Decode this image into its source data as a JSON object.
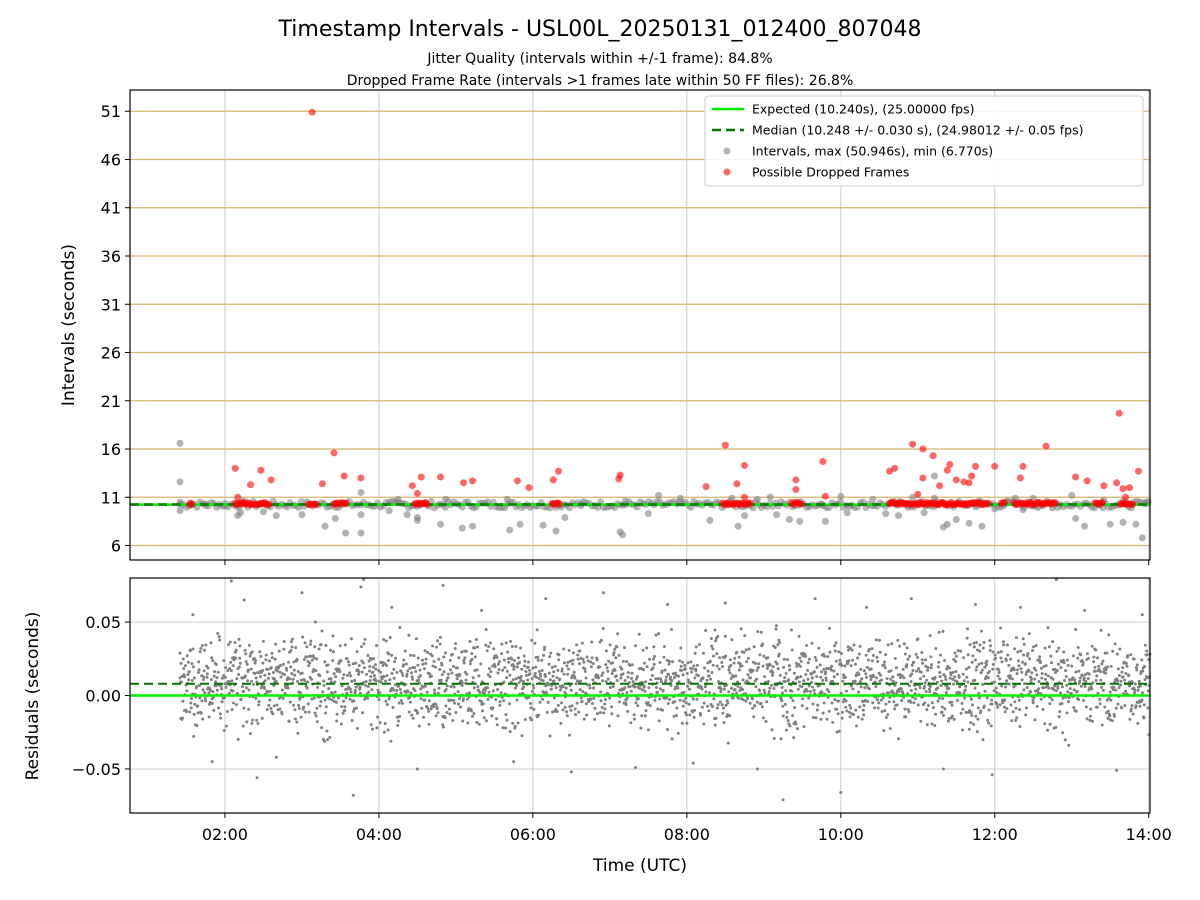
{
  "figure": {
    "title": "Timestamp Intervals - USL00L_20250131_012400_807048",
    "subtitle_1": "Jitter Quality (intervals within +/-1 frame): 84.8%",
    "subtitle_2": "Dropped Frame Rate (intervals >1 frames late within 50 FF files): 26.8%"
  },
  "colors": {
    "expected": "#00ee00",
    "median": "#007700",
    "intervals": "#808080",
    "dropped": "#ff0000",
    "hgrid_top": "#d8b46e",
    "grid": "#cccccc"
  },
  "chart_data": [
    {
      "type": "scatter",
      "xlabel": "",
      "ylabel": "Intervals (seconds)",
      "xlim": [
        "00:46",
        "14:01"
      ],
      "ylim": [
        4.5,
        53.2
      ],
      "x_ticks": [
        "02:00",
        "04:00",
        "06:00",
        "08:00",
        "10:00",
        "12:00",
        "14:00"
      ],
      "y_ticks": [
        6,
        11,
        16,
        21,
        26,
        31,
        36,
        41,
        46,
        51
      ],
      "grid": true,
      "legend_position": "top-right",
      "legend": [
        "Expected (10.240s), (25.00000 fps)",
        "Median (10.248 +/- 0.030 s), (24.98012 +/- 0.05 fps)",
        "Intervals, max (50.946s), min (6.770s)",
        "Possible Dropped Frames"
      ],
      "series": [
        {
          "name": "Expected (10.240s), (25.00000 fps)",
          "kind": "hline",
          "y": 10.24
        },
        {
          "name": "Median (10.248 +/- 0.030 s), (24.98012 +/- 0.05 fps)",
          "kind": "hline",
          "y": 10.248
        },
        {
          "name": "Intervals, max (50.946s), min (6.770s)",
          "kind": "scatter",
          "color_key": "intervals",
          "points": [
            [
              "01:25",
              16.6
            ],
            [
              "01:25",
              12.6
            ],
            [
              "01:25",
              9.6
            ],
            [
              "01:25",
              10.5
            ],
            [
              "01:45",
              10.3
            ],
            [
              "02:00",
              10.1
            ],
            [
              "02:10",
              9.1
            ],
            [
              "02:12",
              9.4
            ],
            [
              "02:30",
              9.5
            ],
            [
              "02:40",
              9.1
            ],
            [
              "03:00",
              9.2
            ],
            [
              "03:18",
              8.0
            ],
            [
              "03:26",
              8.8
            ],
            [
              "03:34",
              7.3
            ],
            [
              "03:46",
              7.3
            ],
            [
              "03:46",
              9.2
            ],
            [
              "03:46",
              11.5
            ],
            [
              "04:08",
              9.6
            ],
            [
              "04:15",
              10.8
            ],
            [
              "04:22",
              9.2
            ],
            [
              "04:30",
              8.6
            ],
            [
              "04:30",
              8.9
            ],
            [
              "04:48",
              8.2
            ],
            [
              "04:52",
              10.8
            ],
            [
              "05:05",
              7.8
            ],
            [
              "05:13",
              8.0
            ],
            [
              "05:40",
              10.8
            ],
            [
              "05:42",
              7.6
            ],
            [
              "05:50",
              8.2
            ],
            [
              "06:08",
              8.1
            ],
            [
              "06:18",
              7.5
            ],
            [
              "06:25",
              8.9
            ],
            [
              "06:38",
              10.3
            ],
            [
              "07:08",
              7.4
            ],
            [
              "07:10",
              7.1
            ],
            [
              "07:12",
              10.6
            ],
            [
              "07:30",
              9.3
            ],
            [
              "07:38",
              11.2
            ],
            [
              "07:55",
              10.9
            ],
            [
              "08:18",
              8.6
            ],
            [
              "08:35",
              10.9
            ],
            [
              "08:40",
              8.0
            ],
            [
              "08:45",
              9.1
            ],
            [
              "08:55",
              10.8
            ],
            [
              "09:05",
              11.0
            ],
            [
              "09:10",
              9.2
            ],
            [
              "09:20",
              8.7
            ],
            [
              "09:28",
              8.5
            ],
            [
              "09:45",
              10.3
            ],
            [
              "09:48",
              8.5
            ],
            [
              "10:00",
              11.1
            ],
            [
              "10:05",
              9.4
            ],
            [
              "10:25",
              10.8
            ],
            [
              "10:35",
              9.3
            ],
            [
              "10:45",
              9.1
            ],
            [
              "10:56",
              11.0
            ],
            [
              "11:05",
              9.4
            ],
            [
              "11:13",
              13.2
            ],
            [
              "11:13",
              10.9
            ],
            [
              "11:20",
              7.9
            ],
            [
              "11:23",
              8.2
            ],
            [
              "11:30",
              8.7
            ],
            [
              "11:40",
              8.3
            ],
            [
              "11:48",
              10.6
            ],
            [
              "11:50",
              8.0
            ],
            [
              "12:00",
              9.8
            ],
            [
              "12:10",
              10.6
            ],
            [
              "12:16",
              10.9
            ],
            [
              "12:22",
              9.7
            ],
            [
              "12:30",
              10.9
            ],
            [
              "12:45",
              9.9
            ],
            [
              "13:00",
              11.2
            ],
            [
              "13:03",
              8.8
            ],
            [
              "13:10",
              8.0
            ],
            [
              "13:25",
              10.7
            ],
            [
              "13:30",
              8.2
            ],
            [
              "13:40",
              8.4
            ],
            [
              "13:50",
              8.2
            ],
            [
              "13:55",
              6.8
            ],
            [
              "13:58",
              10.5
            ]
          ]
        },
        {
          "name": "Possible Dropped Frames",
          "kind": "scatter",
          "color_key": "dropped",
          "points": [
            [
              "01:33",
              10.4
            ],
            [
              "02:08",
              14.0
            ],
            [
              "02:10",
              11.0
            ],
            [
              "02:20",
              12.3
            ],
            [
              "02:28",
              13.8
            ],
            [
              "02:36",
              12.8
            ],
            [
              "03:08",
              50.9
            ],
            [
              "03:16",
              12.4
            ],
            [
              "03:25",
              15.6
            ],
            [
              "03:33",
              13.2
            ],
            [
              "03:46",
              13.0
            ],
            [
              "04:26",
              12.2
            ],
            [
              "04:30",
              11.4
            ],
            [
              "04:33",
              13.1
            ],
            [
              "04:48",
              13.1
            ],
            [
              "05:06",
              12.5
            ],
            [
              "05:13",
              12.7
            ],
            [
              "05:48",
              12.7
            ],
            [
              "05:57",
              12.0
            ],
            [
              "06:16",
              12.8
            ],
            [
              "06:20",
              13.7
            ],
            [
              "07:08",
              13.3
            ],
            [
              "07:07",
              12.9
            ],
            [
              "08:15",
              12.1
            ],
            [
              "08:30",
              16.4
            ],
            [
              "08:39",
              12.4
            ],
            [
              "08:45",
              14.3
            ],
            [
              "08:45",
              11.0
            ],
            [
              "09:25",
              12.8
            ],
            [
              "09:25",
              11.8
            ],
            [
              "09:46",
              14.7
            ],
            [
              "09:48",
              11.1
            ],
            [
              "10:38",
              13.7
            ],
            [
              "10:42",
              14.0
            ],
            [
              "10:56",
              16.5
            ],
            [
              "11:00",
              11.3
            ],
            [
              "11:04",
              16.0
            ],
            [
              "11:04",
              13.0
            ],
            [
              "11:12",
              15.3
            ],
            [
              "11:17",
              12.2
            ],
            [
              "11:23",
              13.8
            ],
            [
              "11:25",
              14.4
            ],
            [
              "11:30",
              12.8
            ],
            [
              "11:36",
              12.6
            ],
            [
              "11:40",
              12.5
            ],
            [
              "11:42",
              13.2
            ],
            [
              "11:45",
              14.2
            ],
            [
              "12:00",
              14.2
            ],
            [
              "12:20",
              13.0
            ],
            [
              "12:22",
              14.2
            ],
            [
              "12:40",
              16.3
            ],
            [
              "13:03",
              13.1
            ],
            [
              "13:12",
              12.7
            ],
            [
              "13:25",
              12.2
            ],
            [
              "13:35",
              12.5
            ],
            [
              "13:37",
              19.7
            ],
            [
              "13:40",
              11.9
            ],
            [
              "13:42",
              11.0
            ],
            [
              "13:45",
              12.0
            ],
            [
              "13:52",
              13.7
            ]
          ]
        }
      ]
    },
    {
      "type": "scatter",
      "xlabel": "Time (UTC)",
      "ylabel": "Residuals (seconds)",
      "xlim": [
        "00:46",
        "14:01"
      ],
      "ylim": [
        -0.08,
        0.08
      ],
      "x_ticks": [
        "02:00",
        "04:00",
        "06:00",
        "08:00",
        "10:00",
        "12:00",
        "14:00"
      ],
      "y_ticks": [
        "−0.05",
        "0.00",
        "0.05"
      ],
      "grid": true,
      "series": [
        {
          "kind": "hline",
          "y": 0.0,
          "color_key": "expected"
        },
        {
          "kind": "hline",
          "y": 0.008,
          "color_key": "median"
        },
        {
          "kind": "scatter",
          "color_key": "intervals",
          "points": [
            [
              "01:25",
              0.012
            ],
            [
              "01:35",
              0.055
            ],
            [
              "01:50",
              -0.045
            ],
            [
              "02:05",
              0.078
            ],
            [
              "02:15",
              0.065
            ],
            [
              "02:25",
              -0.056
            ],
            [
              "02:40",
              -0.042
            ],
            [
              "03:00",
              0.07
            ],
            [
              "03:20",
              -0.03
            ],
            [
              "03:40",
              -0.068
            ],
            [
              "03:46",
              0.074
            ],
            [
              "03:48",
              0.079
            ],
            [
              "04:10",
              0.06
            ],
            [
              "04:30",
              -0.05
            ],
            [
              "04:50",
              0.075
            ],
            [
              "05:20",
              0.058
            ],
            [
              "05:45",
              -0.045
            ],
            [
              "06:10",
              0.066
            ],
            [
              "06:30",
              -0.052
            ],
            [
              "06:55",
              0.07
            ],
            [
              "07:20",
              -0.049
            ],
            [
              "07:45",
              0.062
            ],
            [
              "08:05",
              -0.046
            ],
            [
              "08:30",
              0.063
            ],
            [
              "08:55",
              -0.05
            ],
            [
              "09:15",
              -0.071
            ],
            [
              "09:40",
              0.066
            ],
            [
              "10:00",
              -0.066
            ],
            [
              "10:20",
              0.06
            ],
            [
              "10:55",
              0.066
            ],
            [
              "11:20",
              -0.05
            ],
            [
              "11:45",
              0.062
            ],
            [
              "11:58",
              -0.054
            ],
            [
              "12:20",
              0.06
            ],
            [
              "12:48",
              0.079
            ],
            [
              "13:10",
              0.058
            ],
            [
              "13:35",
              -0.051
            ],
            [
              "13:55",
              0.055
            ]
          ]
        }
      ]
    }
  ]
}
